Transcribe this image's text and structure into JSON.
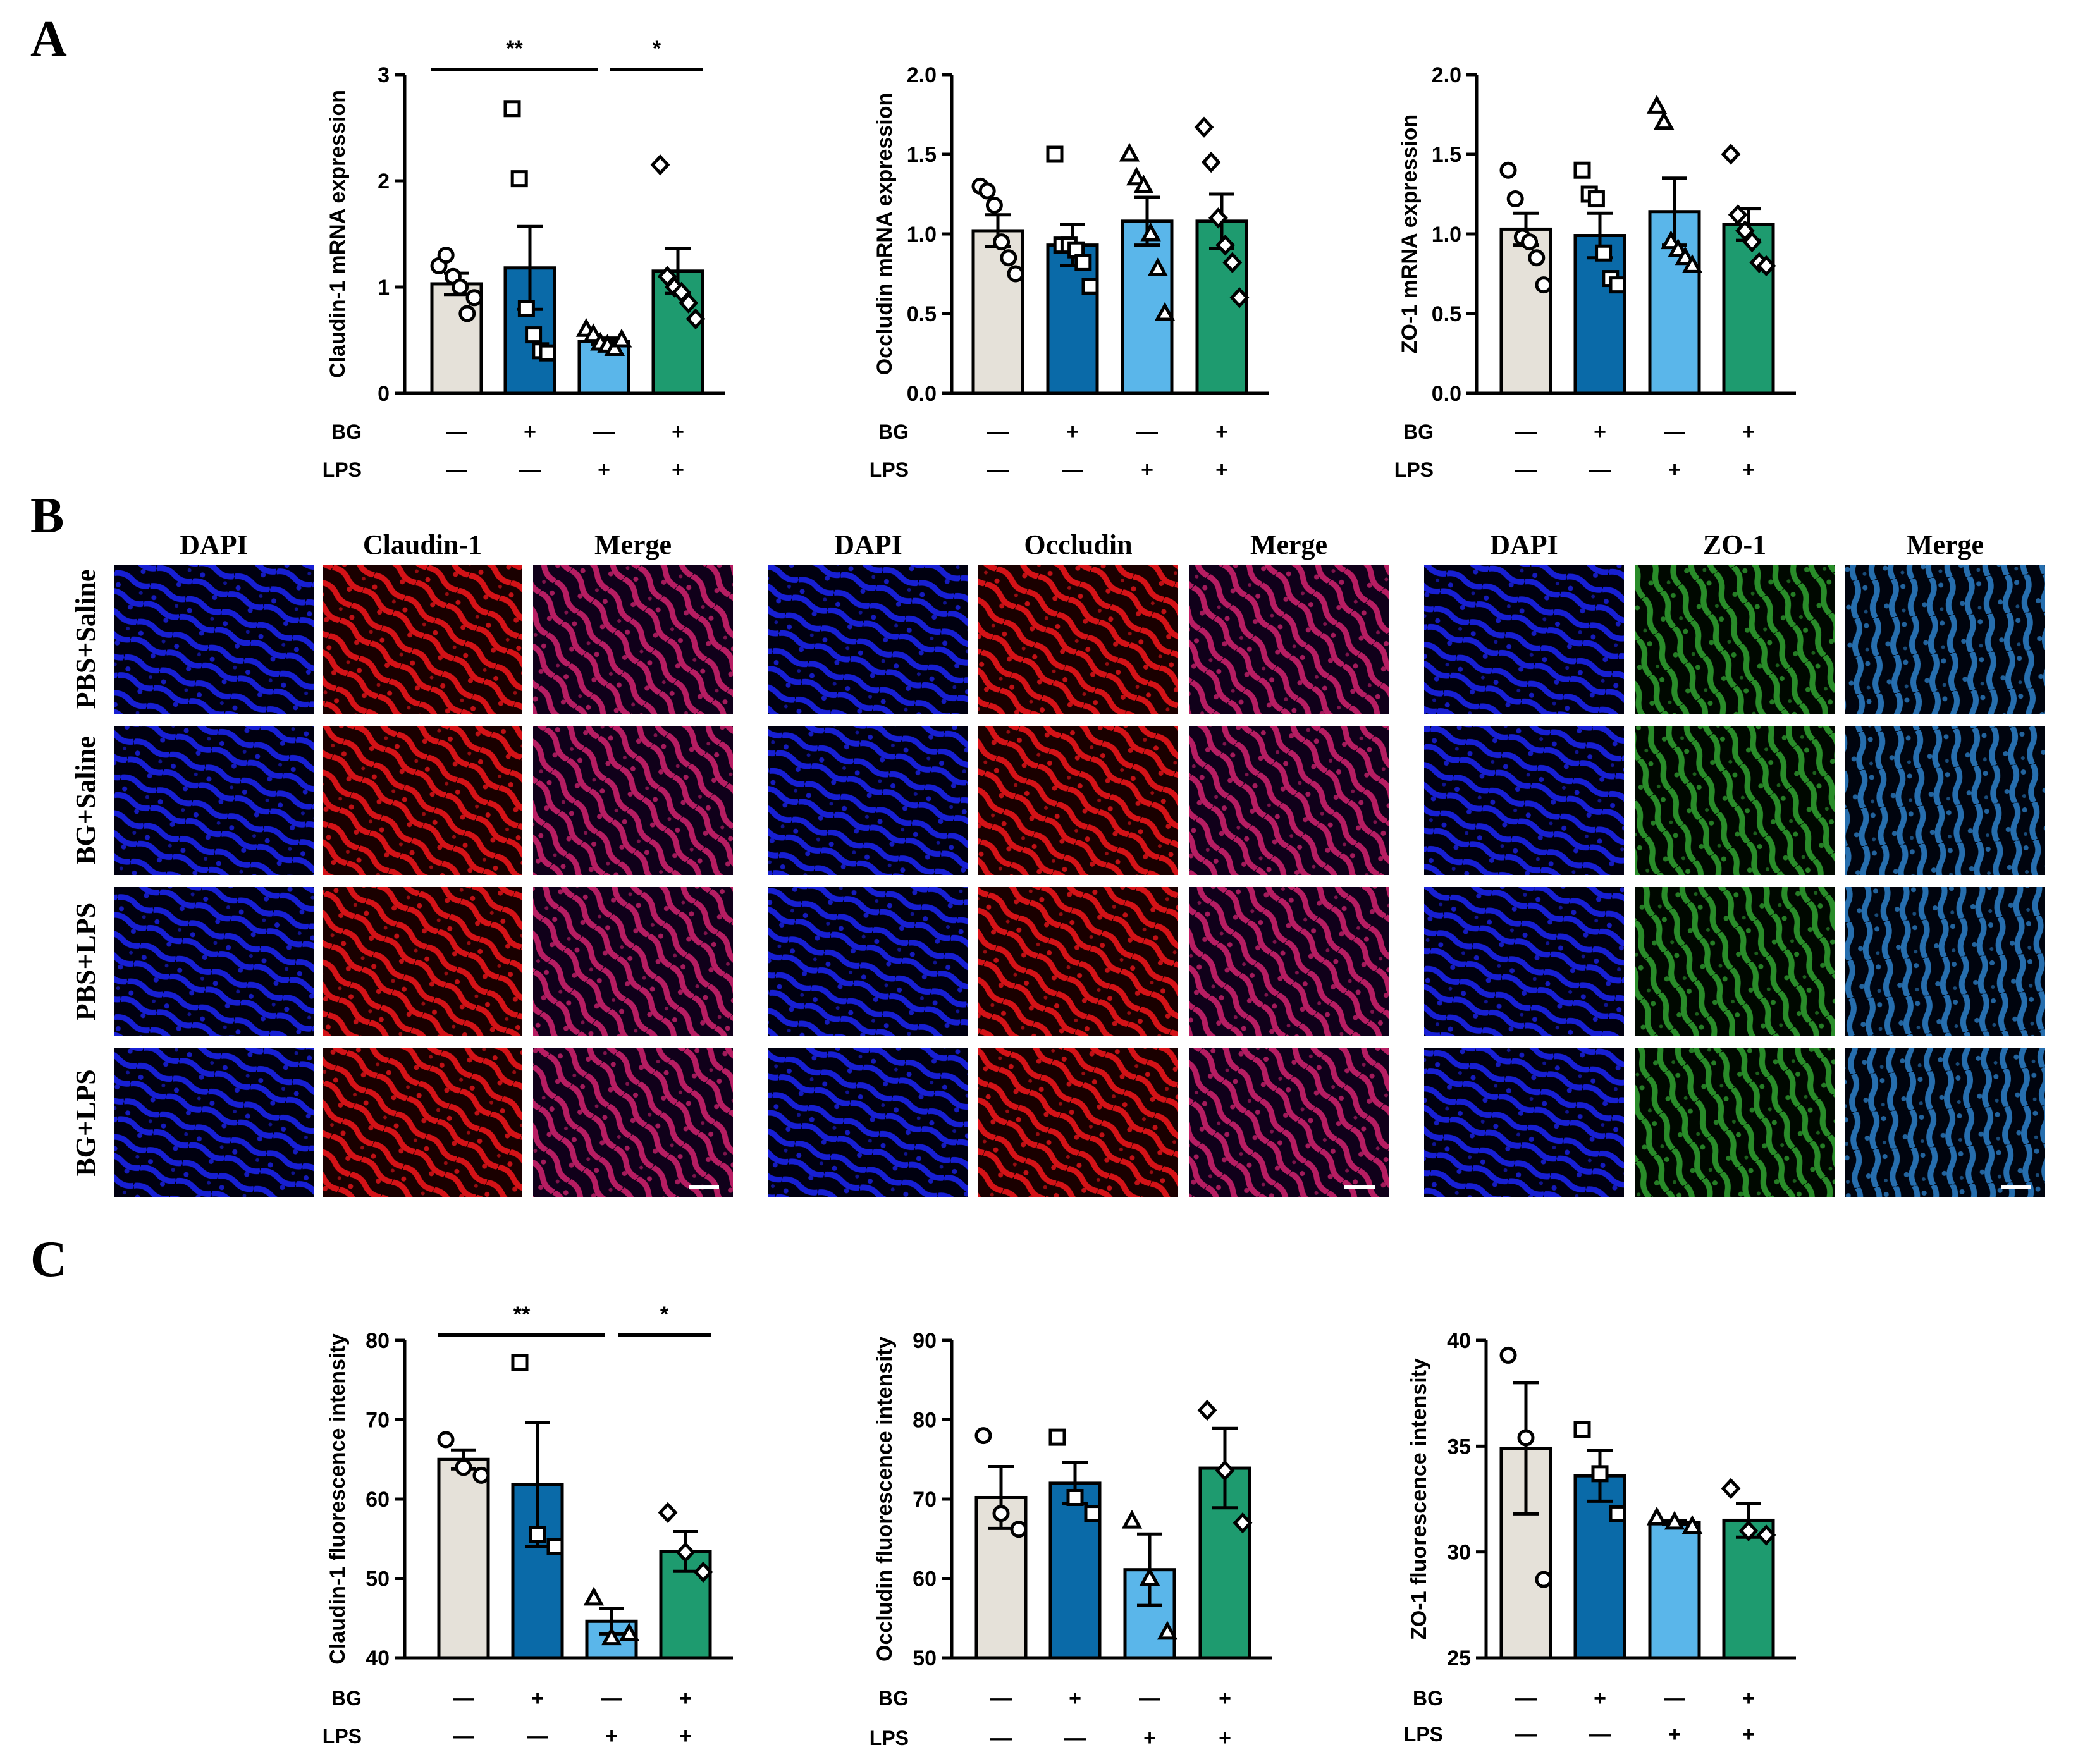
{
  "panels": {
    "A": "A",
    "B": "B",
    "C": "C"
  },
  "colors": {
    "pbs_saline": "#e5e1d9",
    "bg_saline": "#0a6aa8",
    "pbs_lps": "#5ab6ea",
    "bg_lps": "#1e9b6f"
  },
  "treatment_rows": {
    "bg_label": "BG",
    "lps_label": "LPS",
    "bg_signs": [
      "—",
      "+",
      "—",
      "+"
    ],
    "lps_signs": [
      "—",
      "—",
      "+",
      "+"
    ]
  },
  "chart_data": [
    {
      "type": "bar",
      "panel": "A",
      "ylabel": "Claudin-1 mRNA expression",
      "ylim": [
        0,
        3
      ],
      "yticks": [
        "0",
        "1",
        "2",
        "3"
      ],
      "categories": [
        "PBS+Saline",
        "BG+Saline",
        "PBS+LPS",
        "BG+LPS"
      ],
      "values": [
        1.03,
        1.18,
        0.49,
        1.15
      ],
      "sem": [
        0.1,
        0.39,
        0.03,
        0.21
      ],
      "points": [
        [
          1.2,
          1.3,
          1.1,
          1.0,
          0.75,
          0.9
        ],
        [
          2.68,
          2.02,
          0.8,
          0.55,
          0.4,
          0.38
        ],
        [
          0.6,
          0.55,
          0.47,
          0.45,
          0.42,
          0.5
        ],
        [
          2.15,
          1.1,
          1.0,
          0.95,
          0.85,
          0.7
        ]
      ],
      "markers": [
        "circle",
        "square",
        "triangle",
        "diamond"
      ],
      "significance": [
        {
          "from": 0,
          "to": 2,
          "label": "**"
        },
        {
          "from": 2,
          "to": 3,
          "label": "*"
        }
      ]
    },
    {
      "type": "bar",
      "panel": "A",
      "ylabel": "Occludin mRNA expression",
      "ylim": [
        0,
        2
      ],
      "yticks": [
        "0.0",
        "0.5",
        "1.0",
        "1.5",
        "2.0"
      ],
      "categories": [
        "PBS+Saline",
        "BG+Saline",
        "PBS+LPS",
        "BG+LPS"
      ],
      "values": [
        1.02,
        0.93,
        1.08,
        1.08
      ],
      "sem": [
        0.1,
        0.13,
        0.15,
        0.17
      ],
      "points": [
        [
          1.3,
          1.27,
          1.18,
          0.95,
          0.85,
          0.75
        ],
        [
          1.5,
          0.93,
          0.93,
          0.9,
          0.82,
          0.67
        ],
        [
          1.5,
          1.35,
          1.3,
          1.0,
          0.78,
          0.5
        ],
        [
          1.67,
          1.45,
          1.1,
          0.93,
          0.82,
          0.6
        ]
      ],
      "markers": [
        "circle",
        "square",
        "triangle",
        "diamond"
      ],
      "significance": []
    },
    {
      "type": "bar",
      "panel": "A",
      "ylabel": "ZO-1 mRNA expression",
      "ylim": [
        0,
        2
      ],
      "yticks": [
        "0.0",
        "0.5",
        "1.0",
        "1.5",
        "2.0"
      ],
      "categories": [
        "PBS+Saline",
        "BG+Saline",
        "PBS+LPS",
        "BG+LPS"
      ],
      "values": [
        1.03,
        0.99,
        1.14,
        1.06
      ],
      "sem": [
        0.1,
        0.14,
        0.21,
        0.1
      ],
      "points": [
        [
          1.4,
          1.22,
          0.98,
          0.95,
          0.85,
          0.68
        ],
        [
          1.4,
          1.25,
          1.22,
          0.88,
          0.72,
          0.68
        ],
        [
          1.8,
          1.7,
          0.95,
          0.9,
          0.85,
          0.8
        ],
        [
          1.5,
          1.12,
          1.02,
          0.95,
          0.82,
          0.8
        ]
      ],
      "markers": [
        "circle",
        "square",
        "triangle",
        "diamond"
      ],
      "significance": []
    },
    {
      "type": "bar",
      "panel": "C",
      "ylabel": "Claudin-1 fluorescence intensity",
      "ylim": [
        40,
        80
      ],
      "yticks": [
        "40",
        "50",
        "60",
        "70",
        "80"
      ],
      "categories": [
        "PBS+Saline",
        "BG+Saline",
        "PBS+LPS",
        "BG+LPS"
      ],
      "values": [
        65.0,
        61.8,
        44.6,
        53.4
      ],
      "sem": [
        1.2,
        7.8,
        1.6,
        2.5
      ],
      "points": [
        [
          67.5,
          64.0,
          63.0
        ],
        [
          77.2,
          55.5,
          54.0
        ],
        [
          47.5,
          42.5,
          43.0
        ],
        [
          58.3,
          53.3,
          50.8
        ]
      ],
      "markers": [
        "circle",
        "square",
        "triangle",
        "diamond"
      ],
      "significance": [
        {
          "from": 0,
          "to": 2,
          "label": "**"
        },
        {
          "from": 2,
          "to": 3,
          "label": "*"
        }
      ]
    },
    {
      "type": "bar",
      "panel": "C",
      "ylabel": "Occludin fluorescence intensity",
      "ylim": [
        50,
        90
      ],
      "yticks": [
        "50",
        "60",
        "70",
        "80",
        "90"
      ],
      "categories": [
        "PBS+Saline",
        "BG+Saline",
        "PBS+LPS",
        "BG+LPS"
      ],
      "values": [
        70.2,
        72.0,
        61.1,
        73.9
      ],
      "sem": [
        3.9,
        2.6,
        4.5,
        5.0
      ],
      "points": [
        [
          78.0,
          68.2,
          66.2
        ],
        [
          77.8,
          70.2,
          68.2
        ],
        [
          67.2,
          60.0,
          53.2
        ],
        [
          81.2,
          73.6,
          67.0
        ]
      ],
      "markers": [
        "circle",
        "square",
        "triangle",
        "diamond"
      ],
      "significance": []
    },
    {
      "type": "bar",
      "panel": "C",
      "ylabel": "ZO-1 fluorescence intensity",
      "ylim": [
        25,
        40
      ],
      "yticks": [
        "25",
        "30",
        "35",
        "40"
      ],
      "categories": [
        "PBS+Saline",
        "BG+Saline",
        "PBS+LPS",
        "BG+LPS"
      ],
      "values": [
        34.9,
        33.6,
        31.4,
        31.5
      ],
      "sem": [
        3.1,
        1.2,
        0.1,
        0.8
      ],
      "points": [
        [
          39.3,
          35.4,
          28.7
        ],
        [
          35.8,
          33.7,
          31.8
        ],
        [
          31.6,
          31.4,
          31.2
        ],
        [
          33.0,
          31.0,
          30.8
        ]
      ],
      "markers": [
        "circle",
        "square",
        "triangle",
        "diamond"
      ],
      "significance": []
    }
  ],
  "micrographs": {
    "row_labels": [
      "PBS+Saline",
      "BG+Saline",
      "PBS+LPS",
      "BG+LPS"
    ],
    "groups": [
      {
        "headers": [
          "DAPI",
          "Claudin-1",
          "Merge"
        ],
        "channels": [
          "dapi",
          "red",
          "merge-red"
        ]
      },
      {
        "headers": [
          "DAPI",
          "Occludin",
          "Merge"
        ],
        "channels": [
          "dapi",
          "red",
          "merge-red"
        ]
      },
      {
        "headers": [
          "DAPI",
          "ZO-1",
          "Merge"
        ],
        "channels": [
          "dapi",
          "green",
          "merge-green"
        ]
      }
    ],
    "channel_colors": {
      "dapi": [
        "#000010",
        "#1a22e8"
      ],
      "red": [
        "#1a0000",
        "#e8141a"
      ],
      "merge-red": [
        "#10001a",
        "#c8206a"
      ],
      "green": [
        "#000800",
        "#2e9a2e"
      ],
      "merge-green": [
        "#00040e",
        "#2a7ac0"
      ]
    }
  }
}
